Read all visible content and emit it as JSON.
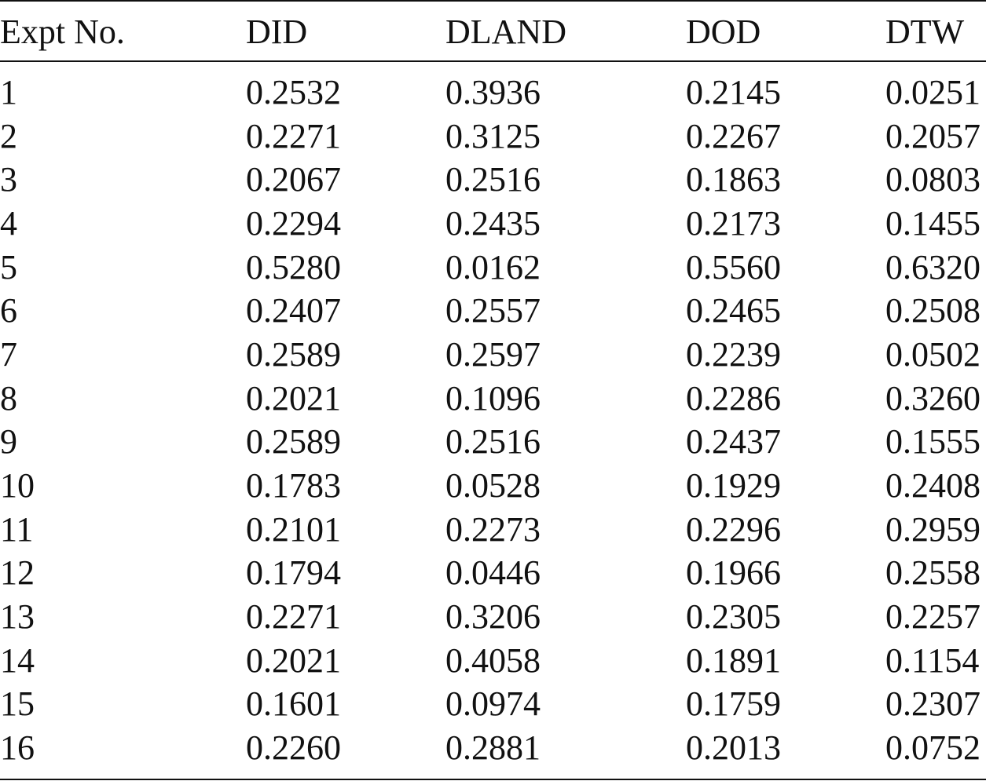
{
  "table": {
    "columns": [
      "Expt No.",
      "DID",
      "DLAND",
      "DOD",
      "DTW"
    ],
    "rows": [
      [
        "1",
        "0.2532",
        "0.3936",
        "0.2145",
        "0.0251"
      ],
      [
        "2",
        "0.2271",
        "0.3125",
        "0.2267",
        "0.2057"
      ],
      [
        "3",
        "0.2067",
        "0.2516",
        "0.1863",
        "0.0803"
      ],
      [
        "4",
        "0.2294",
        "0.2435",
        "0.2173",
        "0.1455"
      ],
      [
        "5",
        "0.5280",
        "0.0162",
        "0.5560",
        "0.6320"
      ],
      [
        "6",
        "0.2407",
        "0.2557",
        "0.2465",
        "0.2508"
      ],
      [
        "7",
        "0.2589",
        "0.2597",
        "0.2239",
        "0.0502"
      ],
      [
        "8",
        "0.2021",
        "0.1096",
        "0.2286",
        "0.3260"
      ],
      [
        "9",
        "0.2589",
        "0.2516",
        "0.2437",
        "0.1555"
      ],
      [
        "10",
        "0.1783",
        "0.0528",
        "0.1929",
        "0.2408"
      ],
      [
        "11",
        "0.2101",
        "0.2273",
        "0.2296",
        "0.2959"
      ],
      [
        "12",
        "0.1794",
        "0.0446",
        "0.1966",
        "0.2558"
      ],
      [
        "13",
        "0.2271",
        "0.3206",
        "0.2305",
        "0.2257"
      ],
      [
        "14",
        "0.2021",
        "0.4058",
        "0.1891",
        "0.1154"
      ],
      [
        "15",
        "0.1601",
        "0.0974",
        "0.1759",
        "0.2307"
      ],
      [
        "16",
        "0.2260",
        "0.2881",
        "0.2013",
        "0.0752"
      ]
    ]
  }
}
